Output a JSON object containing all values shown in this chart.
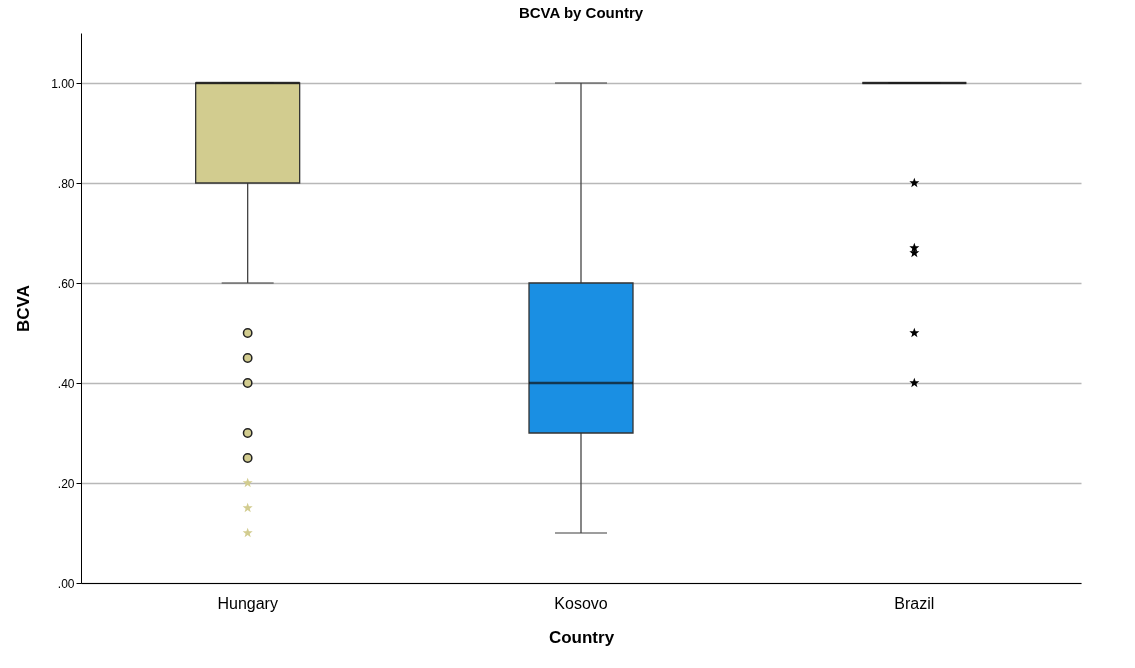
{
  "chart_data": {
    "type": "box",
    "title": "BCVA by Country",
    "xlabel": "Country",
    "ylabel": "BCVA",
    "categories": [
      "Hungary",
      "Kosovo",
      "Brazil"
    ],
    "ylim": [
      0,
      1.1
    ],
    "yticks": [
      {
        "value": 0,
        "label": ".00"
      },
      {
        "value": 0.2,
        "label": ".20"
      },
      {
        "value": 0.4,
        "label": ".40"
      },
      {
        "value": 0.6,
        "label": ".60"
      },
      {
        "value": 0.8,
        "label": ".80"
      },
      {
        "value": 1,
        "label": "1.00"
      }
    ],
    "grid": "y",
    "series": [
      {
        "type": "box",
        "marker": "circle",
        "colors": [
          "#d2cc8f",
          "#1a8fe3",
          "#111111"
        ],
        "boxes": [
          {
            "low": 0.6,
            "q1": 0.8,
            "median": 1.0,
            "q3": 1.0,
            "high": 1.0,
            "outliers": [
              0.5,
              0.45,
              0.4,
              0.3,
              0.25
            ]
          },
          {
            "low": 0.1,
            "q1": 0.3,
            "median": 0.4,
            "q3": 0.6,
            "high": 1.0
          },
          {
            "low": 1.0,
            "q1": 1.0,
            "median": 1.0,
            "q3": 1.0,
            "high": 1.0
          }
        ]
      },
      {
        "type": "scatter",
        "marker": "star",
        "x": [
          "Hungary",
          "Hungary",
          "Hungary",
          "Brazil",
          "Brazil",
          "Brazil",
          "Brazil",
          "Brazil"
        ],
        "values": [
          0.2,
          0.15,
          0.1,
          0.8,
          0.67,
          0.66,
          0.5,
          0.4
        ],
        "colors": [
          "#d2cc8f",
          "#d2cc8f",
          "#d2cc8f",
          "#000000",
          "#000000",
          "#000000",
          "#000000",
          "#000000"
        ]
      }
    ]
  }
}
